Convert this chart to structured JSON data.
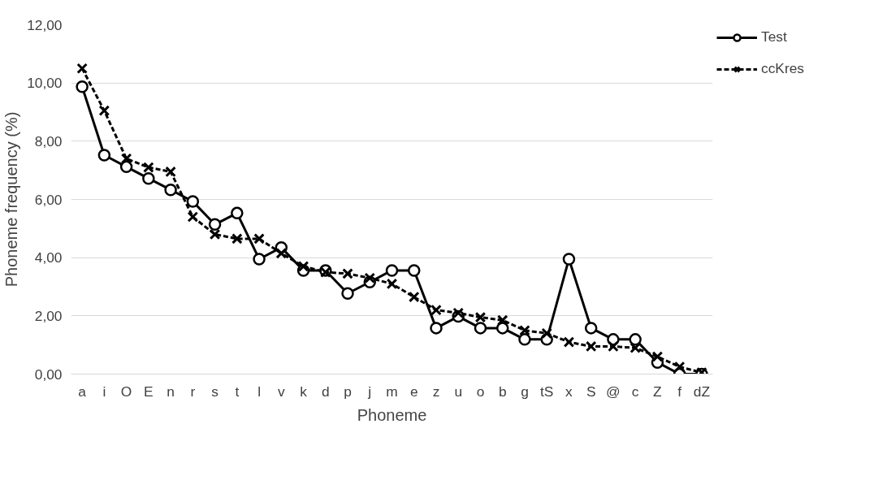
{
  "chart_data": {
    "type": "line",
    "xlabel": "Phoneme",
    "ylabel": "Phoneme frequency (%)",
    "categories": [
      "a",
      "i",
      "O",
      "E",
      "n",
      "r",
      "s",
      "t",
      "l",
      "v",
      "k",
      "d",
      "p",
      "j",
      "m",
      "e",
      "z",
      "u",
      "o",
      "b",
      "g",
      "tS",
      "x",
      "S",
      "@",
      "c",
      "Z",
      "f",
      "dZ"
    ],
    "series": [
      {
        "name": "Test",
        "color": "#000000",
        "marker": "circle",
        "line_style": "solid",
        "values": [
          9.87,
          7.52,
          7.12,
          6.72,
          6.33,
          5.93,
          5.14,
          5.53,
          3.95,
          4.35,
          3.56,
          3.56,
          2.77,
          3.16,
          3.56,
          3.56,
          1.58,
          1.98,
          1.58,
          1.58,
          1.19,
          1.19,
          3.95,
          1.58,
          1.19,
          1.19,
          0.4,
          0.0,
          0.0
        ]
      },
      {
        "name": "ccKres",
        "color": "#000000",
        "marker": "cross",
        "line_style": "dashed",
        "values": [
          10.5,
          9.05,
          7.4,
          7.1,
          6.95,
          5.4,
          4.8,
          4.65,
          4.65,
          4.15,
          3.7,
          3.5,
          3.45,
          3.3,
          3.1,
          2.65,
          2.2,
          2.1,
          1.95,
          1.85,
          1.5,
          1.4,
          1.1,
          0.95,
          0.95,
          0.9,
          0.6,
          0.25,
          0.05
        ]
      }
    ],
    "ylim": [
      0,
      12
    ],
    "yticks": [
      {
        "value": 0,
        "label": "0,00"
      },
      {
        "value": 2,
        "label": "2,00"
      },
      {
        "value": 4,
        "label": "4,00"
      },
      {
        "value": 6,
        "label": "6,00"
      },
      {
        "value": 8,
        "label": "8,00"
      },
      {
        "value": 10,
        "label": "10,00"
      },
      {
        "value": 12,
        "label": "12,00"
      }
    ],
    "grid": "y",
    "legend": "right"
  }
}
